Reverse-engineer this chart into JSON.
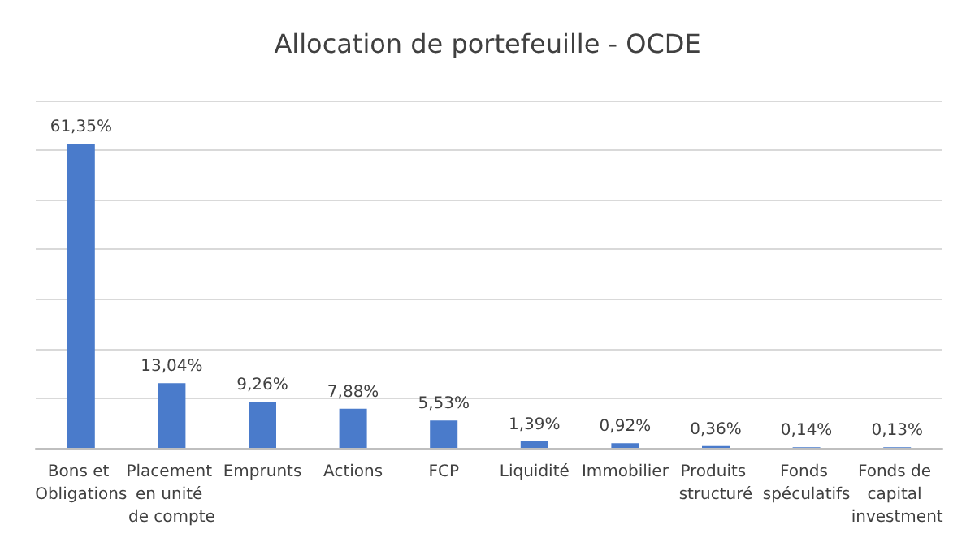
{
  "chart_data": {
    "type": "bar",
    "title": "Allocation de portefeuille - OCDE",
    "categories": [
      "Bons et Obligations",
      "Placement en unité de compte",
      "Emprunts",
      "Actions",
      "FCP",
      "Liquidité",
      "Immobilier",
      "Produits structuré",
      "Fonds spéculatifs",
      "Fonds de capital investment"
    ],
    "values": [
      61.35,
      13.04,
      9.26,
      7.88,
      5.53,
      1.39,
      0.92,
      0.36,
      0.14,
      0.13
    ],
    "value_labels": [
      "61,35%",
      "13,04%",
      "9,26%",
      "7,88%",
      "5,53%",
      "1,39%",
      "0,92%",
      "0,36%",
      "0,14%",
      "0,13%"
    ],
    "color": "#4a7bcb",
    "ylim": [
      0,
      70
    ],
    "yticks": [
      {
        "value": 0,
        "label": null
      },
      {
        "value": 10,
        "label": null
      },
      {
        "value": 20,
        "label": null
      },
      {
        "value": 30,
        "label": null
      },
      {
        "value": 40,
        "label": null
      },
      {
        "value": 50,
        "label": null
      },
      {
        "value": 60,
        "label": null
      },
      {
        "value": 70,
        "label": null
      }
    ],
    "tick_labels": "x",
    "grid": "y"
  }
}
